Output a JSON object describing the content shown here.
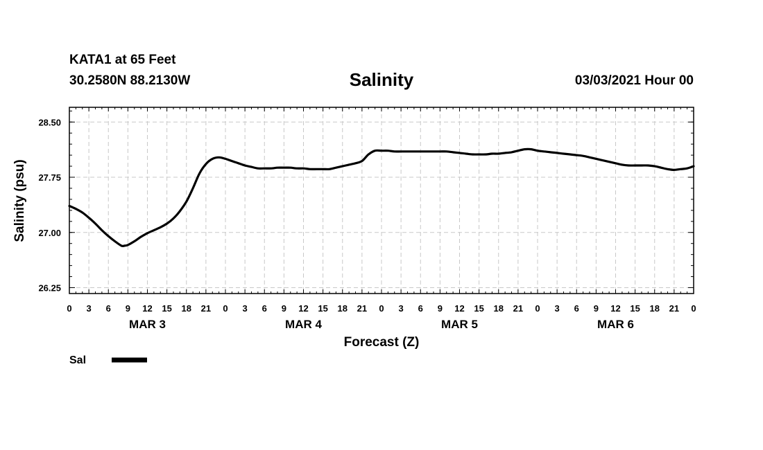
{
  "header": {
    "station": "KATA1 at 65 Feet",
    "coords": "30.2580N 88.2130W",
    "title": "Salinity",
    "issued": "03/03/2021 Hour 00"
  },
  "chart_data": {
    "type": "line",
    "title": "Salinity",
    "xlabel": "Forecast (Z)",
    "ylabel": "Salinity (psu)",
    "xlim": [
      0,
      96
    ],
    "ylim": [
      26.17,
      28.7
    ],
    "yticks": [
      26.25,
      27.0,
      27.75,
      28.5
    ],
    "ytick_labels": [
      "26.25",
      "27.00",
      "27.75",
      "28.50"
    ],
    "xtick_hours": [
      0,
      3,
      6,
      9,
      12,
      15,
      18,
      21,
      24,
      27,
      30,
      33,
      36,
      39,
      42,
      45,
      48,
      51,
      54,
      57,
      60,
      63,
      66,
      69,
      72,
      75,
      78,
      81,
      84,
      87,
      90,
      93,
      96
    ],
    "xtick_labels": [
      "0",
      "3",
      "6",
      "9",
      "12",
      "15",
      "18",
      "21",
      "0",
      "3",
      "6",
      "9",
      "12",
      "15",
      "18",
      "21",
      "0",
      "3",
      "6",
      "9",
      "12",
      "15",
      "18",
      "21",
      "0",
      "3",
      "6",
      "9",
      "12",
      "15",
      "18",
      "21",
      "0"
    ],
    "day_labels": [
      {
        "label": "MAR 3",
        "hour": 12
      },
      {
        "label": "MAR 4",
        "hour": 36
      },
      {
        "label": "MAR 5",
        "hour": 60
      },
      {
        "label": "MAR 6",
        "hour": 84
      }
    ],
    "grid": true,
    "legend_position": "bottom-left",
    "series": [
      {
        "name": "Sal",
        "x": [
          0,
          1,
          2,
          3,
          4,
          5,
          6,
          7,
          8,
          8.5,
          9,
          10,
          11,
          12,
          13,
          14,
          15,
          16,
          17,
          18,
          19,
          20,
          21,
          22,
          23,
          24,
          25,
          26,
          27,
          28,
          29,
          30,
          31,
          32,
          33,
          34,
          35,
          36,
          37,
          38,
          39,
          40,
          41,
          42,
          43,
          44,
          45,
          46,
          47,
          48,
          49,
          50,
          51,
          52,
          53,
          54,
          55,
          56,
          57,
          58,
          59,
          60,
          61,
          62,
          63,
          64,
          65,
          66,
          67,
          68,
          69,
          70,
          71,
          72,
          73,
          74,
          75,
          76,
          77,
          78,
          79,
          80,
          81,
          82,
          83,
          84,
          85,
          86,
          87,
          88,
          89,
          90,
          91,
          92,
          93,
          94,
          95,
          96
        ],
        "values": [
          27.36,
          27.32,
          27.27,
          27.2,
          27.12,
          27.03,
          26.95,
          26.88,
          26.82,
          26.82,
          26.83,
          26.88,
          26.94,
          26.99,
          27.03,
          27.07,
          27.12,
          27.19,
          27.29,
          27.42,
          27.6,
          27.8,
          27.93,
          28.0,
          28.02,
          28.0,
          27.97,
          27.94,
          27.91,
          27.89,
          27.87,
          27.87,
          27.87,
          27.88,
          27.88,
          27.88,
          27.87,
          27.87,
          27.86,
          27.86,
          27.86,
          27.86,
          27.88,
          27.9,
          27.92,
          27.94,
          27.97,
          28.06,
          28.11,
          28.11,
          28.11,
          28.1,
          28.1,
          28.1,
          28.1,
          28.1,
          28.1,
          28.1,
          28.1,
          28.1,
          28.09,
          28.08,
          28.07,
          28.06,
          28.06,
          28.06,
          28.07,
          28.07,
          28.08,
          28.09,
          28.11,
          28.13,
          28.13,
          28.11,
          28.1,
          28.09,
          28.08,
          28.07,
          28.06,
          28.05,
          28.04,
          28.02,
          28.0,
          27.98,
          27.96,
          27.94,
          27.92,
          27.91,
          27.91,
          27.91,
          27.91,
          27.9,
          27.88,
          27.86,
          27.85,
          27.86,
          27.87,
          27.9
        ]
      }
    ]
  }
}
